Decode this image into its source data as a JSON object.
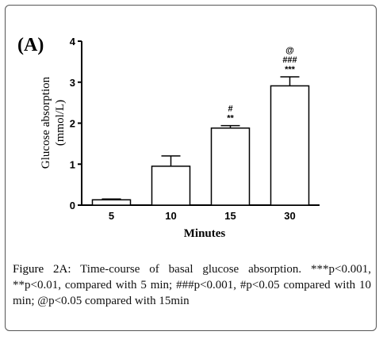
{
  "panel_label": "(A)",
  "chart_data": {
    "type": "bar",
    "categories": [
      "5",
      "10",
      "15",
      "30"
    ],
    "values": [
      0.13,
      0.95,
      1.88,
      2.91
    ],
    "errors": [
      0.02,
      0.25,
      0.06,
      0.22
    ],
    "annotations": [
      [],
      [],
      [
        "#",
        "**"
      ],
      [
        "@",
        "###",
        "***"
      ]
    ],
    "ylabel_line1": "Glucose absorption",
    "ylabel_line2": "(mmol/L)",
    "xlabel": "Minutes",
    "ylim": [
      0,
      4
    ],
    "yticks": [
      "0",
      "1",
      "2",
      "3",
      "4"
    ],
    "bar_fill": "#ffffff",
    "bar_stroke": "#000000",
    "grid": false
  },
  "caption": {
    "figure_label": "Figure 2A:",
    "text": " Time-course of basal glucose absorption. ***p<0.001, **p<0.01, compared with 5 min; ###p<0.001, #p<0.05 compared with 10 min; @p<0.05 compared with 15min"
  }
}
